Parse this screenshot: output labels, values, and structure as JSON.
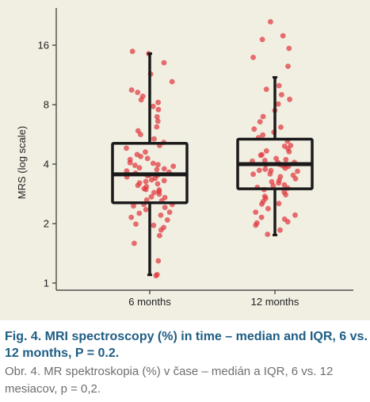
{
  "chart_data": {
    "type": "box",
    "title": "",
    "xlabel": "",
    "ylabel": "MRS (log scale)",
    "y_scale": "log2",
    "ylim": [
      1,
      22
    ],
    "yticks": [
      1,
      2,
      4,
      8,
      16
    ],
    "categories": [
      "6 months",
      "12 months"
    ],
    "point_color": "#e0393e",
    "box_color": "#1a1a1a",
    "grid": false,
    "boxes": [
      {
        "category": "6 months",
        "whisker_low": 1.1,
        "q1": 2.55,
        "median": 3.55,
        "q3": 5.1,
        "whisker_high": 14.5
      },
      {
        "category": "12 months",
        "whisker_low": 1.75,
        "q1": 3.0,
        "median": 4.0,
        "q3": 5.35,
        "whisker_high": 11.0
      }
    ],
    "points": [
      {
        "category": "6 months",
        "values": [
          1.1,
          1.1,
          1.3,
          1.6,
          1.75,
          1.85,
          1.9,
          1.95,
          2.0,
          2.1,
          2.15,
          2.2,
          2.25,
          2.3,
          2.35,
          2.4,
          2.45,
          2.5,
          2.5,
          2.6,
          2.65,
          2.7,
          2.75,
          2.8,
          2.85,
          2.9,
          2.95,
          3.0,
          3.0,
          3.05,
          3.1,
          3.15,
          3.2,
          3.25,
          3.3,
          3.35,
          3.4,
          3.45,
          3.5,
          3.5,
          3.55,
          3.6,
          3.65,
          3.7,
          3.75,
          3.8,
          3.85,
          3.9,
          3.95,
          4.0,
          4.05,
          4.1,
          4.2,
          4.3,
          4.4,
          4.5,
          4.6,
          4.8,
          5.0,
          5.2,
          5.4,
          5.6,
          5.9,
          6.2,
          6.6,
          7.0,
          7.5,
          7.8,
          8.2,
          8.5,
          8.8,
          9.2,
          9.5,
          10.5,
          11.5,
          13.0,
          14.5,
          15.0
        ]
      },
      {
        "category": "12 months",
        "values": [
          1.75,
          1.85,
          1.95,
          2.0,
          2.05,
          2.1,
          2.15,
          2.2,
          2.3,
          2.4,
          2.5,
          2.55,
          2.6,
          2.7,
          2.75,
          2.8,
          2.9,
          2.95,
          3.0,
          3.05,
          3.1,
          3.15,
          3.2,
          3.25,
          3.3,
          3.4,
          3.45,
          3.5,
          3.55,
          3.6,
          3.65,
          3.7,
          3.75,
          3.8,
          3.85,
          3.9,
          3.95,
          4.0,
          4.0,
          4.05,
          4.1,
          4.15,
          4.2,
          4.25,
          4.3,
          4.4,
          4.5,
          4.6,
          4.7,
          4.8,
          4.9,
          5.0,
          5.2,
          5.4,
          5.6,
          5.8,
          6.0,
          6.2,
          6.5,
          7.0,
          7.5,
          8.0,
          8.5,
          9.0,
          9.5,
          10.0,
          12.5,
          14.0,
          15.5,
          17.0,
          18.0,
          21.0
        ]
      }
    ]
  },
  "caption": {
    "english": "Fig. 4. MRI spectroscopy (%) in time – median and IQR, 6 vs. 12 months, P = 0.2.",
    "slovak": "Obr. 4. MR spektroskopia (%) v čase – medián a IQR, 6 vs. 12 mesiacov, p = 0,2."
  }
}
